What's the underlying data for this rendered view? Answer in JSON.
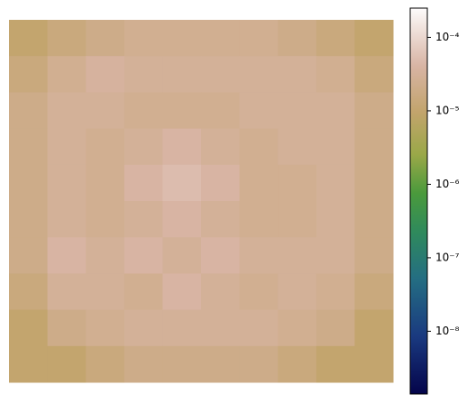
{
  "chart_data": {
    "type": "heatmap",
    "log": true,
    "zlim": [
      1.4e-09,
      0.00025
    ],
    "zticks": [
      {
        "value": 0.0001,
        "label": "10⁻⁴"
      },
      {
        "value": 1e-05,
        "label": "10⁻⁵"
      },
      {
        "value": 1e-06,
        "label": "10⁻⁶"
      },
      {
        "value": 1e-07,
        "label": "10⁻⁷"
      },
      {
        "value": 1e-08,
        "label": "10⁻⁸"
      }
    ],
    "values": [
      [
        1e-05,
        1.5e-05,
        2e-05,
        2.5e-05,
        2.5e-05,
        2.5e-05,
        2.5e-05,
        2e-05,
        1.5e-05,
        1e-05
      ],
      [
        1.5e-05,
        2.5e-05,
        3.5e-05,
        3e-05,
        3e-05,
        3e-05,
        3e-05,
        3e-05,
        2.5e-05,
        1.5e-05
      ],
      [
        2e-05,
        3e-05,
        3e-05,
        2.5e-05,
        2.5e-05,
        2.5e-05,
        3e-05,
        3e-05,
        3e-05,
        2e-05
      ],
      [
        2e-05,
        3e-05,
        2.5e-05,
        3e-05,
        4e-05,
        3e-05,
        2.5e-05,
        3e-05,
        3e-05,
        2e-05
      ],
      [
        2e-05,
        3e-05,
        2.5e-05,
        4e-05,
        5e-05,
        4e-05,
        2.5e-05,
        2.5e-05,
        3e-05,
        2e-05
      ],
      [
        2e-05,
        3e-05,
        2.5e-05,
        3e-05,
        4e-05,
        3e-05,
        2.5e-05,
        2.5e-05,
        3e-05,
        2e-05
      ],
      [
        2e-05,
        4e-05,
        3e-05,
        4e-05,
        3e-05,
        4e-05,
        3e-05,
        3e-05,
        3e-05,
        2e-05
      ],
      [
        1.5e-05,
        3e-05,
        3e-05,
        2.5e-05,
        4e-05,
        3e-05,
        2.5e-05,
        3e-05,
        2.5e-05,
        1.5e-05
      ],
      [
        1e-05,
        2e-05,
        2.5e-05,
        3e-05,
        3e-05,
        3e-05,
        3e-05,
        2.5e-05,
        2e-05,
        1e-05
      ],
      [
        1e-05,
        1e-05,
        1.5e-05,
        2e-05,
        2e-05,
        2e-05,
        2e-05,
        1.5e-05,
        1e-05,
        1e-05
      ]
    ]
  }
}
